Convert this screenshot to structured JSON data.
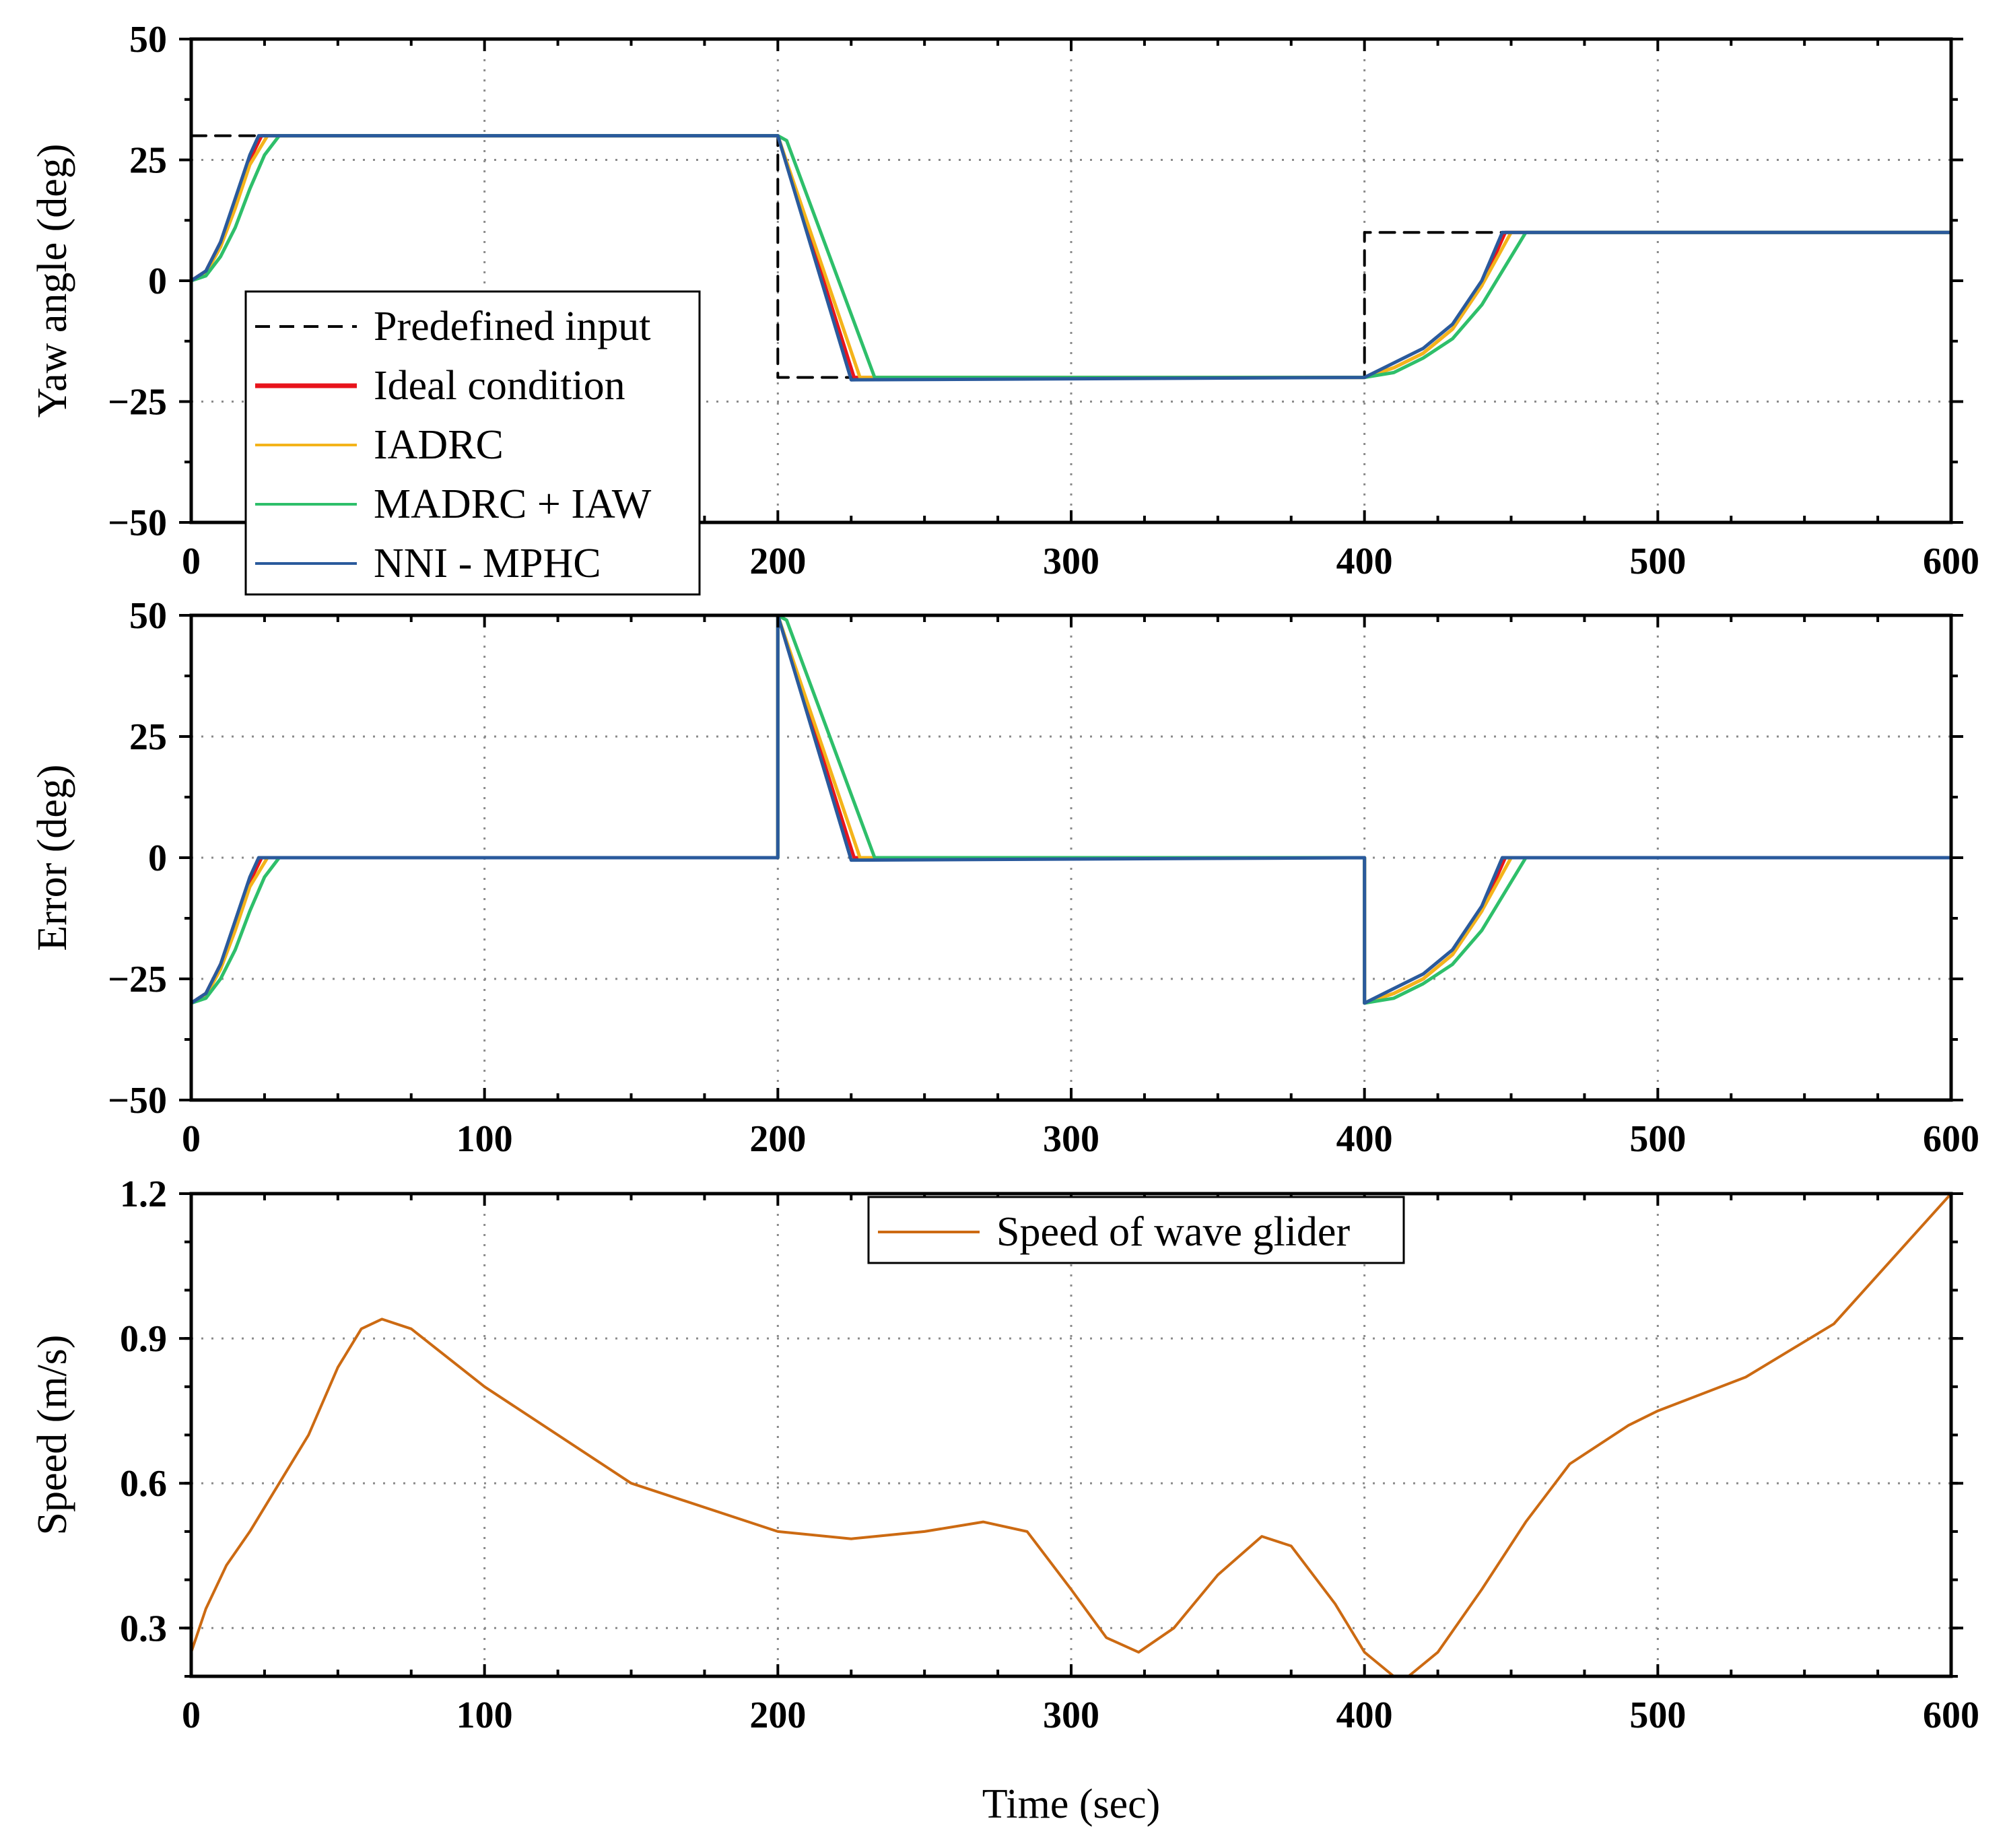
{
  "chart_data": [
    {
      "type": "line",
      "id": "yaw",
      "ylabel": "Yaw angle (deg)",
      "xlabel": "",
      "xlim": [
        0,
        600
      ],
      "ylim": [
        -50,
        50
      ],
      "xticks": [
        "0",
        "100",
        "200",
        "300",
        "400",
        "500",
        "600"
      ],
      "yticks": [
        "50",
        "25",
        "0",
        "−25",
        "−50"
      ],
      "legend_position": "lower-left",
      "series": [
        {
          "name": "Predefined input",
          "color": "#000000",
          "style": "dashed",
          "x": [
            0,
            200,
            200,
            400,
            400,
            600
          ],
          "y": [
            30,
            30,
            -20,
            -20,
            10,
            10
          ]
        },
        {
          "name": "Ideal condition",
          "color": "#e8141c",
          "style": "solid",
          "x": [
            0,
            5,
            10,
            15,
            20,
            24,
            200,
            226,
            400,
            410,
            420,
            430,
            440,
            448,
            600
          ],
          "y": [
            0,
            2,
            8,
            16,
            25,
            30,
            30,
            -20,
            -20,
            -18,
            -15,
            -10,
            -1,
            10,
            10
          ]
        },
        {
          "name": "IADRC",
          "color": "#f4b41a",
          "style": "solid",
          "x": [
            0,
            5,
            10,
            15,
            20,
            26,
            200,
            228,
            400,
            410,
            420,
            430,
            440,
            450,
            600
          ],
          "y": [
            0,
            1.5,
            7,
            15,
            24,
            30,
            30,
            -20,
            -20,
            -18,
            -15,
            -10,
            -1,
            10,
            10
          ]
        },
        {
          "name": "MADRC + IAW",
          "color": "#2ebf6a",
          "style": "solid",
          "x": [
            0,
            5,
            10,
            15,
            20,
            25,
            30,
            200,
            203,
            233,
            400,
            410,
            420,
            430,
            440,
            455,
            600
          ],
          "y": [
            0,
            1,
            5,
            11,
            19,
            26,
            30,
            30,
            29,
            -20,
            -20,
            -19,
            -16,
            -12,
            -5,
            10,
            10
          ]
        },
        {
          "name": "NNI - MPHC",
          "color": "#2a5a9c",
          "style": "solid",
          "x": [
            0,
            5,
            10,
            15,
            20,
            23,
            200,
            225,
            400,
            410,
            420,
            430,
            440,
            447,
            600
          ],
          "y": [
            0,
            2,
            8,
            17,
            26,
            30,
            30,
            -20.5,
            -20,
            -17,
            -14,
            -9,
            0,
            10,
            10
          ]
        }
      ]
    },
    {
      "type": "line",
      "id": "error",
      "ylabel": "Error (deg)",
      "xlabel": "",
      "xlim": [
        0,
        600
      ],
      "ylim": [
        -50,
        50
      ],
      "xticks": [
        "0",
        "100",
        "200",
        "300",
        "400",
        "500",
        "600"
      ],
      "yticks": [
        "50",
        "25",
        "0",
        "−25",
        "−50"
      ],
      "series": [
        {
          "name": "Ideal condition",
          "color": "#e8141c",
          "style": "solid",
          "x": [
            0,
            5,
            10,
            15,
            20,
            24,
            200,
            200,
            226,
            400,
            400,
            410,
            420,
            430,
            440,
            448,
            600
          ],
          "y": [
            -30,
            -28,
            -22,
            -14,
            -5,
            0,
            0,
            50,
            0,
            0,
            -30,
            -28,
            -25,
            -20,
            -11,
            0,
            0
          ]
        },
        {
          "name": "IADRC",
          "color": "#f4b41a",
          "style": "solid",
          "x": [
            0,
            5,
            10,
            15,
            20,
            26,
            200,
            200,
            228,
            400,
            400,
            410,
            420,
            430,
            440,
            450,
            600
          ],
          "y": [
            -30,
            -28.5,
            -23,
            -15,
            -6,
            0,
            0,
            50,
            0,
            0,
            -30,
            -28,
            -25,
            -20,
            -11,
            0,
            0
          ]
        },
        {
          "name": "MADRC + IAW",
          "color": "#2ebf6a",
          "style": "solid",
          "x": [
            0,
            5,
            10,
            15,
            20,
            25,
            30,
            200,
            200,
            203,
            233,
            400,
            400,
            410,
            420,
            430,
            440,
            455,
            600
          ],
          "y": [
            -30,
            -29,
            -25,
            -19,
            -11,
            -4,
            0,
            0,
            50,
            49,
            0,
            0,
            -30,
            -29,
            -26,
            -22,
            -15,
            0,
            0
          ]
        },
        {
          "name": "NNI - MPHC",
          "color": "#2a5a9c",
          "style": "solid",
          "x": [
            0,
            5,
            10,
            15,
            20,
            23,
            200,
            200,
            225,
            400,
            400,
            410,
            420,
            430,
            440,
            447,
            600
          ],
          "y": [
            -30,
            -28,
            -22,
            -13,
            -4,
            0,
            0,
            50,
            -0.5,
            0,
            -30,
            -27,
            -24,
            -19,
            -10,
            0,
            0
          ]
        }
      ]
    },
    {
      "type": "line",
      "id": "speed",
      "ylabel": "Speed (m/s)",
      "xlabel": "Time (sec)",
      "xlim": [
        0,
        600
      ],
      "ylim": [
        0.2,
        1.2
      ],
      "xticks": [
        "0",
        "100",
        "200",
        "300",
        "400",
        "500",
        "600"
      ],
      "yticks": [
        "1.2",
        "0.9",
        "0.6",
        "0.3"
      ],
      "legend_position": "top-center",
      "series": [
        {
          "name": "Speed of wave glider",
          "color": "#cc6a12",
          "style": "solid",
          "x": [
            0,
            5,
            12,
            20,
            30,
            40,
            50,
            58,
            65,
            75,
            100,
            150,
            200,
            225,
            250,
            270,
            285,
            300,
            312,
            323,
            335,
            350,
            365,
            375,
            390,
            400,
            410,
            415,
            425,
            440,
            455,
            470,
            490,
            500,
            530,
            560,
            600
          ],
          "y": [
            0.25,
            0.34,
            0.43,
            0.5,
            0.6,
            0.7,
            0.84,
            0.92,
            0.94,
            0.92,
            0.8,
            0.6,
            0.5,
            0.485,
            0.5,
            0.52,
            0.5,
            0.38,
            0.28,
            0.25,
            0.3,
            0.41,
            0.49,
            0.47,
            0.35,
            0.25,
            0.2,
            0.2,
            0.25,
            0.38,
            0.52,
            0.64,
            0.72,
            0.75,
            0.82,
            0.93,
            1.2
          ]
        }
      ]
    }
  ]
}
